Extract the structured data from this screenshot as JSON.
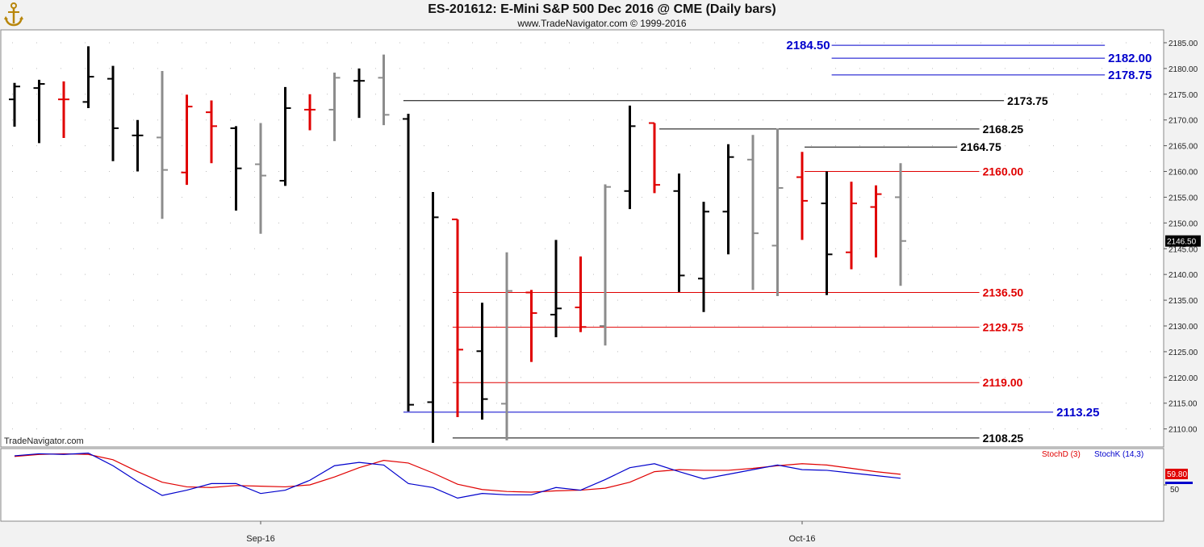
{
  "header": {
    "title": "ES-201612:  E-Mini S&P 500 Dec 2016 @ CME  (Daily bars)",
    "subtitle": "www.TradeNavigator.com © 1999-2016"
  },
  "watermark": "TradeNavigator.com",
  "logo_icon": "anchor-logo-icon",
  "colors": {
    "black": "#000000",
    "red": "#e00000",
    "gray": "#8c8c8c",
    "blue": "#0000cc",
    "panel": "#ffffff",
    "background": "#f2f2f2"
  },
  "chart_data": [
    {
      "type": "ohlc",
      "title": "ES-201612:  E-Mini S&P 500 Dec 2016 @ CME  (Daily bars)",
      "ylim": [
        2106.5,
        2187.5
      ],
      "y_ticks": [
        "2110.00",
        "2115.00",
        "2120.00",
        "2125.00",
        "2130.00",
        "2135.00",
        "2140.00",
        "2145.00",
        "2150.00",
        "2155.00",
        "2160.00",
        "2165.00",
        "2170.00",
        "2175.00",
        "2180.00",
        "2185.00"
      ],
      "last_price": "2146.50",
      "x_labels": [
        {
          "label": "Sep-16",
          "index": 10
        },
        {
          "label": "Oct-16",
          "index": 32
        }
      ],
      "grid": true,
      "bars": [
        {
          "i": 0,
          "o": 2174.0,
          "h": 2177.2,
          "l": 2168.7,
          "c": 2176.5,
          "color": "black"
        },
        {
          "i": 1,
          "o": 2176.2,
          "h": 2177.8,
          "l": 2165.5,
          "c": 2177.0,
          "color": "black"
        },
        {
          "i": 2,
          "o": 2174.0,
          "h": 2177.5,
          "l": 2166.5,
          "c": 2174.0,
          "color": "red"
        },
        {
          "i": 3,
          "o": 2173.5,
          "h": 2184.3,
          "l": 2172.3,
          "c": 2178.4,
          "color": "black"
        },
        {
          "i": 4,
          "o": 2178.0,
          "h": 2180.5,
          "l": 2162.0,
          "c": 2168.4,
          "color": "black"
        },
        {
          "i": 5,
          "o": 2167.0,
          "h": 2170.0,
          "l": 2160.0,
          "c": 2167.0,
          "color": "black"
        },
        {
          "i": 6,
          "o": 2166.6,
          "h": 2179.5,
          "l": 2150.8,
          "c": 2160.3,
          "color": "gray"
        },
        {
          "i": 7,
          "o": 2159.8,
          "h": 2174.9,
          "l": 2157.4,
          "c": 2172.6,
          "color": "red"
        },
        {
          "i": 8,
          "o": 2171.5,
          "h": 2173.8,
          "l": 2161.6,
          "c": 2168.8,
          "color": "red"
        },
        {
          "i": 9,
          "o": 2168.4,
          "h": 2168.8,
          "l": 2152.4,
          "c": 2160.6,
          "color": "black"
        },
        {
          "i": 10,
          "o": 2161.4,
          "h": 2169.4,
          "l": 2147.9,
          "c": 2159.2,
          "color": "gray"
        },
        {
          "i": 11,
          "o": 2158.2,
          "h": 2176.4,
          "l": 2157.2,
          "c": 2172.3,
          "color": "black"
        },
        {
          "i": 12,
          "o": 2172.0,
          "h": 2175.0,
          "l": 2168.0,
          "c": 2172.0,
          "color": "red"
        },
        {
          "i": 13,
          "o": 2172.0,
          "h": 2179.2,
          "l": 2165.9,
          "c": 2178.2,
          "color": "gray"
        },
        {
          "i": 14,
          "o": 2177.6,
          "h": 2180.0,
          "l": 2170.4,
          "c": 2177.6,
          "color": "black"
        },
        {
          "i": 15,
          "o": 2178.2,
          "h": 2182.7,
          "l": 2169.0,
          "c": 2171.0,
          "color": "gray"
        },
        {
          "i": 16,
          "o": 2170.2,
          "h": 2171.2,
          "l": 2113.4,
          "c": 2114.7,
          "color": "black"
        },
        {
          "i": 17,
          "o": 2115.2,
          "h": 2156.0,
          "l": 2107.3,
          "c": 2151.1,
          "color": "black"
        },
        {
          "i": 18,
          "o": 2150.7,
          "h": 2150.7,
          "l": 2112.3,
          "c": 2125.4,
          "color": "red"
        },
        {
          "i": 19,
          "o": 2125.1,
          "h": 2134.5,
          "l": 2111.8,
          "c": 2115.8,
          "color": "black"
        },
        {
          "i": 20,
          "o": 2114.9,
          "h": 2144.3,
          "l": 2107.8,
          "c": 2136.8,
          "color": "gray"
        },
        {
          "i": 21,
          "o": 2136.5,
          "h": 2137.0,
          "l": 2123.0,
          "c": 2132.5,
          "color": "red"
        },
        {
          "i": 22,
          "o": 2132.2,
          "h": 2146.7,
          "l": 2127.8,
          "c": 2133.4,
          "color": "black"
        },
        {
          "i": 23,
          "o": 2133.6,
          "h": 2143.5,
          "l": 2128.8,
          "c": 2129.8,
          "color": "red"
        },
        {
          "i": 24,
          "o": 2130.0,
          "h": 2157.5,
          "l": 2126.2,
          "c": 2157.0,
          "color": "gray"
        },
        {
          "i": 25,
          "o": 2156.2,
          "h": 2172.8,
          "l": 2152.7,
          "c": 2168.8,
          "color": "black"
        },
        {
          "i": 26,
          "o": 2169.4,
          "h": 2169.4,
          "l": 2155.8,
          "c": 2157.4,
          "color": "red"
        },
        {
          "i": 27,
          "o": 2156.2,
          "h": 2159.6,
          "l": 2136.6,
          "c": 2139.8,
          "color": "black"
        },
        {
          "i": 28,
          "o": 2139.2,
          "h": 2154.1,
          "l": 2132.7,
          "c": 2152.2,
          "color": "black"
        },
        {
          "i": 29,
          "o": 2152.2,
          "h": 2165.3,
          "l": 2143.9,
          "c": 2162.8,
          "color": "black"
        },
        {
          "i": 30,
          "o": 2162.3,
          "h": 2167.1,
          "l": 2137.0,
          "c": 2148.0,
          "color": "gray"
        },
        {
          "i": 31,
          "o": 2145.6,
          "h": 2168.3,
          "l": 2135.8,
          "c": 2156.8,
          "color": "gray"
        },
        {
          "i": 32,
          "o": 2158.9,
          "h": 2163.8,
          "l": 2146.7,
          "c": 2154.3,
          "color": "red"
        },
        {
          "i": 33,
          "o": 2153.8,
          "h": 2160.0,
          "l": 2136.0,
          "c": 2143.9,
          "color": "black"
        },
        {
          "i": 34,
          "o": 2144.3,
          "h": 2158.0,
          "l": 2141.0,
          "c": 2153.8,
          "color": "red"
        },
        {
          "i": 35,
          "o": 2153.1,
          "h": 2157.3,
          "l": 2143.3,
          "c": 2155.6,
          "color": "red"
        },
        {
          "i": 36,
          "o": 2155.0,
          "h": 2161.6,
          "l": 2137.8,
          "c": 2146.5,
          "color": "gray"
        }
      ],
      "levels": [
        {
          "price": 2184.5,
          "label": "2184.50",
          "color": "blue",
          "x_from": 33.2,
          "x_to": 44.3,
          "label_side": "left",
          "bold": true,
          "size": "large"
        },
        {
          "price": 2182.0,
          "label": "2182.00",
          "color": "blue",
          "x_from": 33.2,
          "x_to": 44.3,
          "label_side": "right",
          "bold": true,
          "size": "large"
        },
        {
          "price": 2178.75,
          "label": "2178.75",
          "color": "blue",
          "x_from": 33.2,
          "x_to": 44.3,
          "label_side": "right",
          "bold": true,
          "size": "large"
        },
        {
          "price": 2173.75,
          "label": "2173.75",
          "color": "black",
          "x_from": 15.8,
          "x_to": 40.2,
          "label_side": "right",
          "bold": true,
          "size": "normal"
        },
        {
          "price": 2168.25,
          "label": "2168.25",
          "color": "black",
          "x_from": 26.2,
          "x_to": 39.2,
          "label_side": "right",
          "bold": true,
          "size": "normal"
        },
        {
          "price": 2164.75,
          "label": "2164.75",
          "color": "black",
          "x_from": 32.1,
          "x_to": 38.3,
          "label_side": "right",
          "bold": true,
          "size": "normal"
        },
        {
          "price": 2160.0,
          "label": "2160.00",
          "color": "red",
          "x_from": 32.1,
          "x_to": 39.2,
          "label_side": "right",
          "bold": true,
          "size": "normal"
        },
        {
          "price": 2136.5,
          "label": "2136.50",
          "color": "red",
          "x_from": 17.8,
          "x_to": 39.2,
          "label_side": "right",
          "bold": true,
          "size": "normal"
        },
        {
          "price": 2129.75,
          "label": "2129.75",
          "color": "red",
          "x_from": 17.8,
          "x_to": 39.2,
          "label_side": "right",
          "bold": true,
          "size": "normal"
        },
        {
          "price": 2119.0,
          "label": "2119.00",
          "color": "red",
          "x_from": 17.8,
          "x_to": 39.2,
          "label_side": "right",
          "bold": true,
          "size": "normal"
        },
        {
          "price": 2113.25,
          "label": "2113.25",
          "color": "blue",
          "x_from": 15.8,
          "x_to": 42.2,
          "label_side": "right",
          "bold": true,
          "size": "large"
        },
        {
          "price": 2108.25,
          "label": "2108.25",
          "color": "black",
          "x_from": 17.8,
          "x_to": 39.2,
          "label_side": "right",
          "bold": true,
          "size": "normal"
        }
      ]
    },
    {
      "type": "line",
      "ylim": [
        0,
        100
      ],
      "y_ticks": [
        "50"
      ],
      "last_value": "59.80",
      "series": [
        {
          "name": "StochD (3)",
          "color": "red",
          "values": [
            93,
            96,
            97,
            96,
            88,
            70,
            54,
            47,
            46,
            49,
            48,
            47,
            50,
            62,
            76,
            87,
            83,
            68,
            51,
            43,
            40,
            39,
            41,
            42,
            45,
            54,
            70,
            73,
            72,
            72,
            75,
            79,
            82,
            80,
            75,
            70,
            66
          ]
        },
        {
          "name": "StochK (14,3)",
          "color": "blue",
          "values": [
            94,
            97,
            96,
            98,
            79,
            55,
            34,
            42,
            52,
            52,
            37,
            42,
            57,
            79,
            84,
            80,
            52,
            46,
            30,
            37,
            35,
            35,
            46,
            42,
            58,
            76,
            82,
            70,
            59,
            66,
            73,
            80,
            73,
            72,
            68,
            64,
            60
          ]
        }
      ]
    }
  ]
}
